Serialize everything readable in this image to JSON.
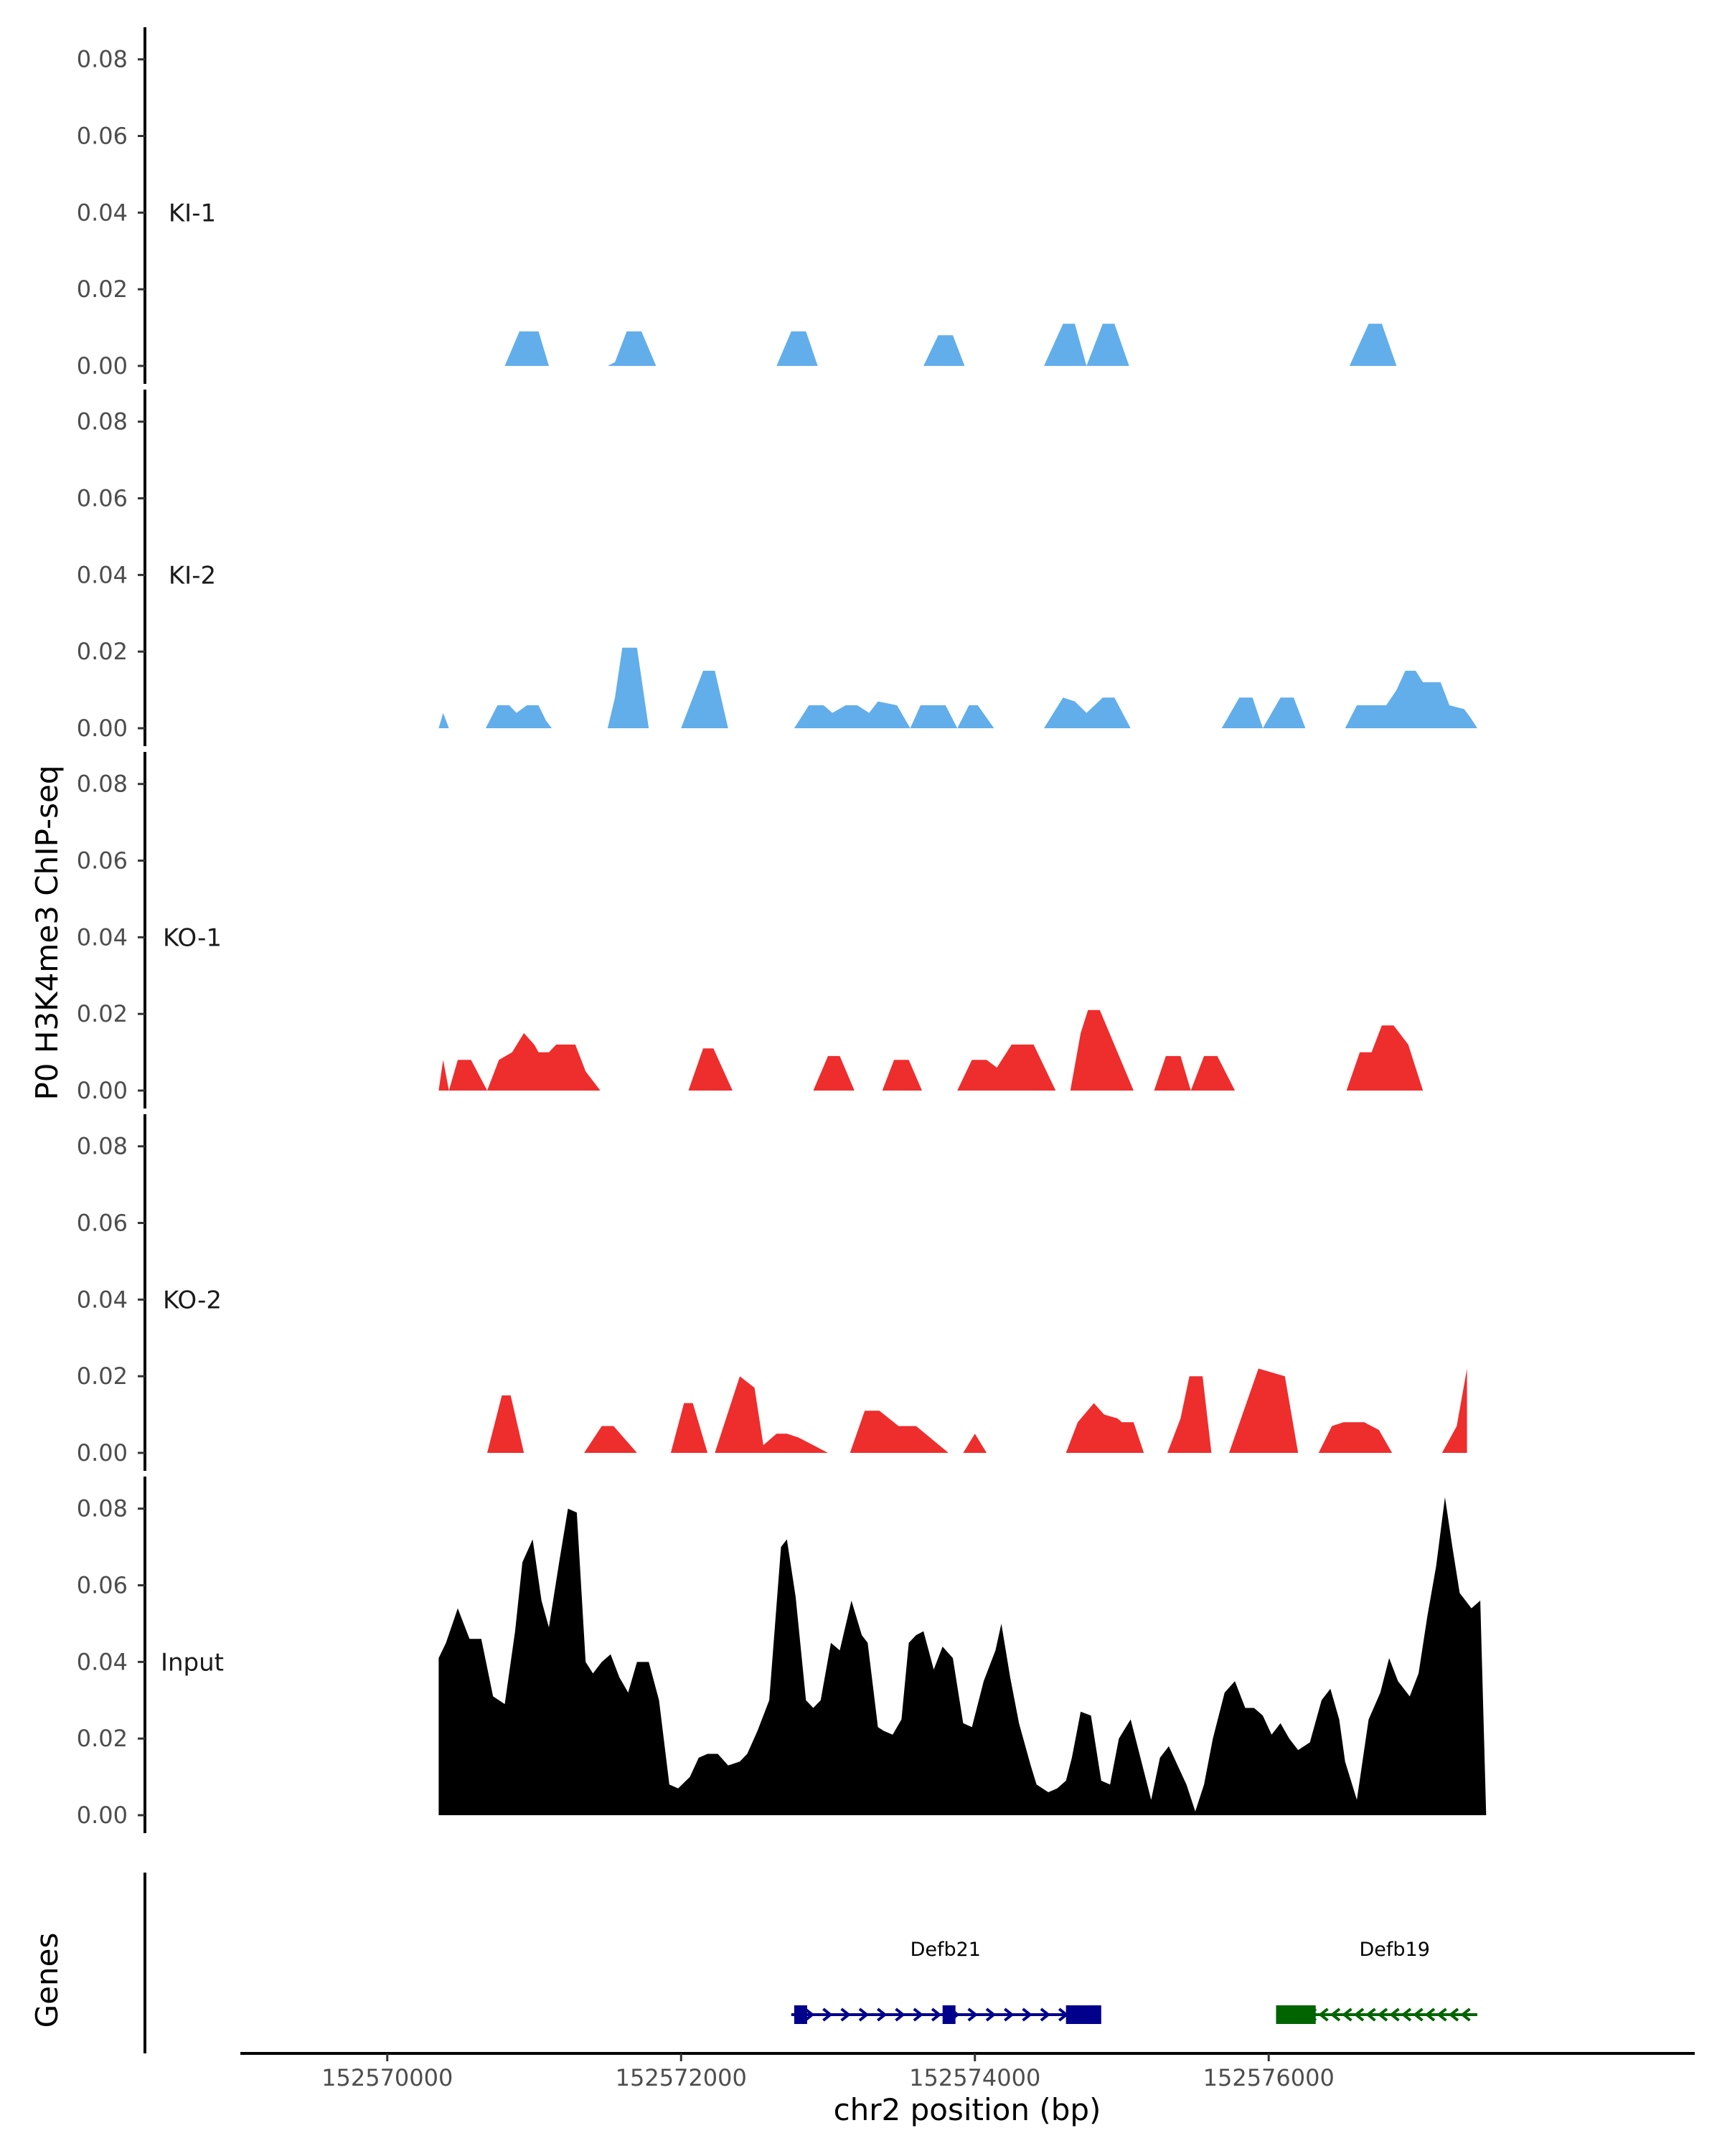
{
  "chart_data": {
    "type": "area",
    "ylabel": "P0 H3K4me3 ChIP-seq",
    "xlabel": "chr2 position (bp)",
    "genes_label": "Genes",
    "xlim": [
      152569000,
      152578900
    ],
    "ylim": [
      0,
      0.088
    ],
    "yticks": [
      "0.00",
      "0.02",
      "0.04",
      "0.06",
      "0.08"
    ],
    "yticks_values": [
      0,
      0.02,
      0.04,
      0.06,
      0.08
    ],
    "xticks": [
      "152570000",
      "152572000",
      "152574000",
      "152576000"
    ],
    "xticks_values": [
      152570000,
      152572000,
      152574000,
      152576000
    ],
    "colors": {
      "KI": "#62aeea",
      "KO": "#ee2d2d",
      "Input": "#000000",
      "Defb21": "#00008b",
      "Defb19": "#006400"
    },
    "tracks": [
      {
        "name": "KI-1",
        "color": "#62aeea",
        "x": [
          152570800,
          152570900,
          152571030,
          152571100,
          152571500,
          152571550,
          152571630,
          152571730,
          152571830,
          152572650,
          152572750,
          152572850,
          152572930,
          152573650,
          152573750,
          152573850,
          152573930,
          152574470,
          152574600,
          152574680,
          152574760,
          152574870,
          152574950,
          152575050,
          152576550,
          152576680,
          152576770,
          152576870
        ],
        "y": [
          0,
          0.009,
          0.009,
          0,
          0,
          0.001,
          0.009,
          0.009,
          0,
          0,
          0.009,
          0.009,
          0,
          0,
          0.008,
          0.008,
          0,
          0,
          0.011,
          0.011,
          0,
          0.011,
          0.011,
          0,
          0,
          0.011,
          0.011,
          0
        ]
      },
      {
        "name": "KI-2",
        "color": "#62aeea",
        "x": [
          152570350,
          152570380,
          152570420,
          152570670,
          152570750,
          152570830,
          152570880,
          152570950,
          152571030,
          152571080,
          152571120,
          152571200,
          152571500,
          152571550,
          152571600,
          152571700,
          152571780,
          152571850,
          152572000,
          152572150,
          152572230,
          152572320,
          152572770,
          152572870,
          152572970,
          152573030,
          152573120,
          152573200,
          152573280,
          152573340,
          152573470,
          152573560,
          152573630,
          152573800,
          152573880,
          152573960,
          152574020,
          152574130,
          152574240,
          152574470,
          152574600,
          152574680,
          152574760,
          152574870,
          152574950,
          152575060,
          152575680,
          152575800,
          152575890,
          152575960,
          152576080,
          152576170,
          152576250,
          152576520,
          152576600,
          152576700,
          152576800,
          152576870,
          152576930,
          152577000,
          152577050,
          152577170,
          152577230,
          152577330,
          152577370,
          152577420
        ],
        "y": [
          0,
          0.004,
          0,
          0,
          0.006,
          0.006,
          0.004,
          0.006,
          0.006,
          0.002,
          0,
          0,
          0,
          0.008,
          0.021,
          0.021,
          0,
          0,
          0,
          0.015,
          0.015,
          0,
          0,
          0.006,
          0.006,
          0.004,
          0.006,
          0.006,
          0.004,
          0.007,
          0.006,
          0,
          0.006,
          0.006,
          0,
          0.006,
          0.006,
          0,
          0,
          0,
          0.008,
          0.007,
          0.004,
          0.008,
          0.008,
          0,
          0,
          0.008,
          0.008,
          0,
          0.008,
          0.008,
          0,
          0,
          0.006,
          0.006,
          0.006,
          0.01,
          0.015,
          0.015,
          0.012,
          0.012,
          0.006,
          0.005,
          0.003,
          0
        ],
        "end": 152577420
      },
      {
        "name": "KO-1",
        "color": "#ee2d2d",
        "x": [
          152570350,
          152570380,
          152570420,
          152570480,
          152570570,
          152570680,
          152570760,
          152570850,
          152570930,
          152571000,
          152571030,
          152571100,
          152571150,
          152571280,
          152571310,
          152571350,
          152571450,
          152572050,
          152572150,
          152572220,
          152572350,
          152572900,
          152573000,
          152573080,
          152573180,
          152573370,
          152573450,
          152573550,
          152573640,
          152573880,
          152573980,
          152574080,
          152574150,
          152574250,
          152574400,
          152574550,
          152574650,
          152574720,
          152574770,
          152574850,
          152575080,
          152575220,
          152575300,
          152575400,
          152575470,
          152575560,
          152575650,
          152575770,
          152576530,
          152576620,
          152576700,
          152576770,
          152576850,
          152576950,
          152577050
        ],
        "y": [
          0,
          0.008,
          0,
          0.008,
          0.008,
          0,
          0.008,
          0.01,
          0.015,
          0.012,
          0.01,
          0.01,
          0.012,
          0.012,
          0.009,
          0.005,
          0,
          0,
          0.011,
          0.011,
          0,
          0,
          0.009,
          0.009,
          0,
          0,
          0.008,
          0.008,
          0,
          0,
          0.008,
          0.008,
          0.006,
          0.012,
          0.012,
          0,
          0,
          0.015,
          0.021,
          0.021,
          0,
          0,
          0.009,
          0.009,
          0,
          0.009,
          0.009,
          0,
          0,
          0.01,
          0.01,
          0.017,
          0.017,
          0.012,
          0
        ],
        "end": 152577050
      },
      {
        "name": "KO-2",
        "color": "#ee2d2d",
        "x": [
          152570680,
          152570780,
          152570840,
          152570930,
          152571340,
          152571460,
          152571540,
          152571700,
          152571930,
          152572020,
          152572080,
          152572180,
          152572230,
          152572400,
          152572500,
          152572560,
          152572650,
          152572720,
          152572800,
          152573000,
          152573150,
          152573250,
          152573350,
          152573480,
          152573600,
          152573820,
          152573920,
          152574000,
          152574080,
          152574620,
          152574700,
          152574810,
          152574880,
          152574970,
          152575000,
          152575080,
          152575150,
          152575310,
          152575400,
          152575460,
          152575550,
          152575610,
          152575730,
          152575930,
          152576110,
          152576200,
          152576340,
          152576430,
          152576510,
          152576650,
          152576750,
          152576840,
          152577180,
          152577280,
          152577350
        ],
        "y": [
          0,
          0.015,
          0.015,
          0,
          0,
          0.007,
          0.007,
          0,
          0,
          0.013,
          0.013,
          0,
          0,
          0.02,
          0.017,
          0.002,
          0.005,
          0.005,
          0.004,
          0,
          0,
          0.011,
          0.011,
          0.007,
          0.007,
          0,
          0,
          0.005,
          0,
          0,
          0.008,
          0.013,
          0.01,
          0.009,
          0.008,
          0.008,
          0,
          0,
          0.009,
          0.02,
          0.02,
          0,
          0,
          0.022,
          0.02,
          0,
          0,
          0.007,
          0.008,
          0.008,
          0.006,
          0,
          0,
          0.007,
          0.022
        ],
        "end": 152577350
      },
      {
        "name": "Input",
        "color": "#000000",
        "x": [
          152570350,
          152570400,
          152570480,
          152570560,
          152570640,
          152570720,
          152570800,
          152570870,
          152570920,
          152570990,
          152571050,
          152571100,
          152571170,
          152571230,
          152571290,
          152571350,
          152571400,
          152571460,
          152571520,
          152571580,
          152571640,
          152571700,
          152571780,
          152571850,
          152571920,
          152571980,
          152572060,
          152572120,
          152572180,
          152572250,
          152572320,
          152572400,
          152572450,
          152572520,
          152572600,
          152572680,
          152572720,
          152572780,
          152572850,
          152572900,
          152572950,
          152573020,
          152573080,
          152573160,
          152573230,
          152573270,
          152573340,
          152573380,
          152573440,
          152573500,
          152573550,
          152573600,
          152573650,
          152573720,
          152573780,
          152573850,
          152573920,
          152573980,
          152574060,
          152574140,
          152574180,
          152574240,
          152574300,
          152574380,
          152574420,
          152574500,
          152574560,
          152574620,
          152574660,
          152574720,
          152574790,
          152574860,
          152574920,
          152574980,
          152575060,
          152575120,
          152575200,
          152575260,
          152575320,
          152575440,
          152575500,
          152575560,
          152575620,
          152575700,
          152575770,
          152575840,
          152575900,
          152575960,
          152576020,
          152576080,
          152576140,
          152576200,
          152576280,
          152576360,
          152576420,
          152576480,
          152576520,
          152576600,
          152576680,
          152576760,
          152576820,
          152576880,
          152576960,
          152577020,
          152577080,
          152577140,
          152577200,
          152577250,
          152577300,
          152577380,
          152577440
        ],
        "y": [
          0.041,
          0.045,
          0.054,
          0.046,
          0.046,
          0.031,
          0.029,
          0.048,
          0.066,
          0.072,
          0.056,
          0.049,
          0.066,
          0.08,
          0.079,
          0.04,
          0.037,
          0.04,
          0.042,
          0.036,
          0.032,
          0.04,
          0.04,
          0.03,
          0.008,
          0.007,
          0.01,
          0.015,
          0.016,
          0.016,
          0.013,
          0.014,
          0.016,
          0.022,
          0.03,
          0.07,
          0.072,
          0.057,
          0.03,
          0.028,
          0.03,
          0.045,
          0.043,
          0.056,
          0.047,
          0.045,
          0.023,
          0.022,
          0.021,
          0.025,
          0.045,
          0.047,
          0.048,
          0.038,
          0.044,
          0.041,
          0.024,
          0.023,
          0.035,
          0.043,
          0.05,
          0.036,
          0.024,
          0.013,
          0.008,
          0.006,
          0.007,
          0.009,
          0.015,
          0.027,
          0.026,
          0.009,
          0.008,
          0.02,
          0.025,
          0.016,
          0.004,
          0.015,
          0.018,
          0.008,
          0.001,
          0.008,
          0.02,
          0.032,
          0.035,
          0.028,
          0.028,
          0.026,
          0.021,
          0.024,
          0.02,
          0.017,
          0.019,
          0.03,
          0.033,
          0.025,
          0.014,
          0.004,
          0.025,
          0.032,
          0.041,
          0.035,
          0.031,
          0.037,
          0.052,
          0.065,
          0.083,
          0.07,
          0.058,
          0.054,
          0.056
        ],
        "end": 152577480
      }
    ],
    "genes": [
      {
        "name": "Defb21",
        "color": "#00008b",
        "start": 152572750,
        "end": 152574850,
        "strand": "+",
        "exons": [
          [
            152572770,
            152572850
          ],
          [
            152573780,
            152573860
          ],
          [
            152574620,
            152574860
          ]
        ]
      },
      {
        "name": "Defb19",
        "color": "#006400",
        "start": 152576050,
        "end": 152577420,
        "strand": "-",
        "exons": [
          [
            152576050,
            152576320
          ]
        ]
      }
    ]
  }
}
